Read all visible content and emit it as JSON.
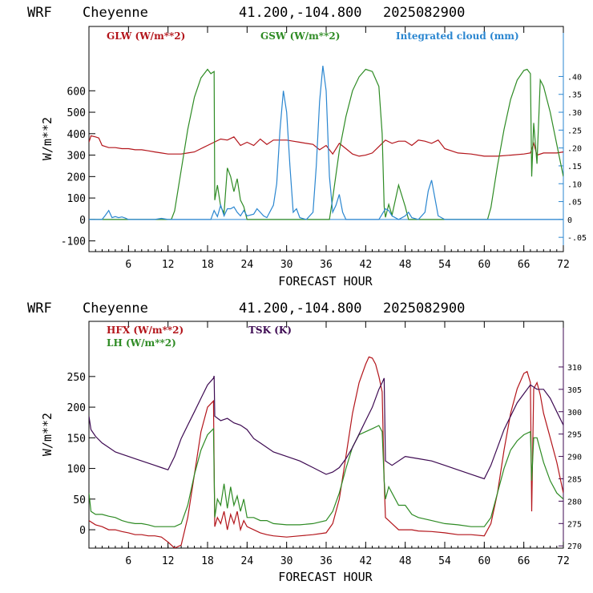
{
  "colors": {
    "glw": "#b3151b",
    "gsw": "#2e8b24",
    "cloud": "#2a86d0",
    "hfx": "#b3151b",
    "lh": "#2e8b24",
    "tsk": "#3d0a52"
  },
  "chart_data": [
    {
      "type": "line",
      "header": {
        "model": "WRF",
        "station": "Cheyenne",
        "coords": "41.200,-104.800",
        "date": "2025082900"
      },
      "xlabel": "FORECAST HOUR",
      "ylabel": "W/m**2",
      "xlim": [
        0,
        72
      ],
      "ylim": [
        -150,
        900
      ],
      "y2lim": [
        -0.09,
        0.54
      ],
      "xticks": [
        6,
        12,
        18,
        24,
        30,
        36,
        42,
        48,
        54,
        60,
        66,
        72
      ],
      "yticks": [
        -100,
        0,
        100,
        200,
        300,
        400,
        500,
        600
      ],
      "y2ticks": [
        -0.05,
        0,
        0.05,
        0.1,
        0.15,
        0.2,
        0.25,
        0.3,
        0.35,
        0.4
      ],
      "y2tick_labels": [
        "-.05",
        "0",
        ".05",
        ".10",
        ".15",
        ".20",
        ".25",
        ".30",
        ".35",
        ".40"
      ],
      "series": [
        {
          "name": "GLW (W/m**2)",
          "axis": "left",
          "x": [
            0,
            0.3,
            1,
            1.5,
            2,
            3,
            4,
            5,
            6,
            7,
            8,
            9,
            10,
            11,
            12,
            13,
            14,
            15,
            16,
            17,
            18,
            19,
            20,
            21,
            22,
            23,
            24,
            25,
            26,
            27,
            28,
            29,
            30,
            31,
            32,
            33,
            34,
            35,
            36,
            37,
            38,
            39,
            40,
            41,
            42,
            43,
            44,
            45,
            46,
            47,
            48,
            49,
            50,
            51,
            52,
            53,
            54,
            56,
            58,
            60,
            62,
            64,
            66,
            67,
            67.5,
            68,
            69,
            70,
            71,
            72
          ],
          "values": [
            360,
            390,
            385,
            380,
            345,
            335,
            335,
            330,
            330,
            325,
            325,
            320,
            315,
            310,
            305,
            305,
            305,
            310,
            315,
            330,
            345,
            360,
            375,
            370,
            385,
            345,
            360,
            345,
            375,
            350,
            370,
            370,
            370,
            365,
            360,
            355,
            350,
            325,
            345,
            305,
            355,
            330,
            305,
            295,
            300,
            310,
            340,
            370,
            355,
            365,
            365,
            345,
            370,
            365,
            355,
            370,
            330,
            310,
            305,
            295,
            295,
            300,
            305,
            310,
            355,
            300,
            310,
            310,
            310,
            315
          ]
        },
        {
          "name": "GSW (W/m**2)",
          "axis": "left",
          "x": [
            0,
            12.5,
            13,
            14,
            15,
            16,
            17,
            18,
            18.5,
            19,
            19.1,
            19.5,
            20,
            20.5,
            21,
            21.5,
            22,
            22.5,
            23,
            23.5,
            24,
            36.5,
            37,
            38,
            39,
            40,
            41,
            42,
            43,
            44,
            44.5,
            44.8,
            45,
            45.5,
            46,
            47,
            48,
            48.5,
            60.5,
            61,
            62,
            63,
            64,
            65,
            66,
            66.5,
            67,
            67.2,
            67.5,
            68,
            68.5,
            69,
            70,
            71,
            72
          ],
          "values": [
            0,
            0,
            40,
            230,
            420,
            570,
            660,
            700,
            680,
            690,
            90,
            160,
            60,
            30,
            240,
            200,
            130,
            190,
            90,
            60,
            0,
            0,
            100,
            320,
            480,
            600,
            665,
            700,
            690,
            620,
            400,
            60,
            10,
            70,
            20,
            160,
            60,
            0,
            0,
            55,
            250,
            420,
            560,
            650,
            695,
            700,
            680,
            200,
            450,
            260,
            650,
            620,
            500,
            350,
            200
          ]
        },
        {
          "name": "Integrated cloud (mm)",
          "axis": "right",
          "x": [
            0,
            1,
            2,
            2.5,
            3,
            3.5,
            4,
            4.5,
            5,
            5.5,
            6,
            10,
            11,
            12,
            18.5,
            19,
            19.5,
            20,
            20.5,
            21,
            21.5,
            22,
            22.5,
            23,
            23.5,
            24,
            25,
            25.5,
            26,
            26.5,
            27,
            28,
            28.5,
            29,
            29.5,
            30,
            30.5,
            31,
            31.5,
            32,
            33,
            34,
            34.5,
            35,
            35.5,
            36,
            36.5,
            37,
            37.5,
            38,
            38.5,
            39,
            44,
            44.5,
            45,
            45.5,
            46,
            47,
            48,
            48.5,
            49,
            50,
            51,
            51.5,
            52,
            52.5,
            53,
            54,
            72
          ],
          "values": [
            0,
            0,
            0,
            0.012,
            0.025,
            0.005,
            0.008,
            0.005,
            0.007,
            0.004,
            0,
            0,
            0.003,
            0,
            0,
            0.025,
            0.008,
            0.04,
            0.01,
            0.03,
            0.03,
            0.035,
            0.02,
            0.01,
            0.025,
            0.01,
            0.015,
            0.03,
            0.02,
            0.01,
            0.005,
            0.04,
            0.1,
            0.25,
            0.36,
            0.3,
            0.15,
            0.02,
            0.03,
            0.005,
            0,
            0.02,
            0.15,
            0.33,
            0.43,
            0.36,
            0.12,
            0.02,
            0.04,
            0.07,
            0.02,
            0,
            0,
            0.015,
            0.03,
            0.025,
            0.01,
            0,
            0.01,
            0.02,
            0.005,
            0,
            0.02,
            0.08,
            0.11,
            0.06,
            0.01,
            0,
            0
          ]
        }
      ]
    },
    {
      "type": "line",
      "header": {
        "model": "WRF",
        "station": "Cheyenne",
        "coords": "41.200,-104.800",
        "date": "2025082900"
      },
      "xlabel": "FORECAST HOUR",
      "ylabel": "W/m**2",
      "xlim": [
        0,
        72
      ],
      "ylim": [
        -30,
        340
      ],
      "y2lim": [
        269.5,
        320.2
      ],
      "xticks": [
        6,
        12,
        18,
        24,
        30,
        36,
        42,
        48,
        54,
        60,
        66,
        72
      ],
      "yticks": [
        0,
        50,
        100,
        150,
        200,
        250
      ],
      "y2ticks": [
        270,
        275,
        280,
        285,
        290,
        295,
        300,
        305,
        310
      ],
      "series": [
        {
          "name": "HFX (W/m**2)",
          "axis": "left",
          "x": [
            0,
            1,
            2,
            3,
            4,
            5,
            6,
            7,
            8,
            9,
            10,
            11,
            12,
            13,
            14,
            15,
            16,
            17,
            18,
            18.9,
            19.1,
            19.5,
            20,
            20.5,
            21,
            21.5,
            22,
            22.5,
            23,
            23.5,
            24,
            25,
            26,
            27,
            28,
            30,
            32,
            34,
            36,
            37,
            38,
            39,
            40,
            41,
            42,
            42.5,
            43,
            43.5,
            44,
            44.5,
            44.8,
            45,
            45.5,
            46,
            47,
            48,
            49,
            50,
            52,
            54,
            56,
            58,
            60,
            61,
            62,
            63,
            64,
            65,
            66,
            66.5,
            67,
            67.2,
            67.5,
            68,
            68.5,
            69,
            70,
            71,
            72
          ],
          "values": [
            15,
            8,
            5,
            0,
            0,
            -3,
            -5,
            -8,
            -8,
            -10,
            -10,
            -12,
            -20,
            -30,
            -25,
            20,
            90,
            160,
            200,
            210,
            5,
            20,
            10,
            30,
            0,
            25,
            10,
            30,
            0,
            15,
            5,
            0,
            -5,
            -8,
            -10,
            -12,
            -10,
            -8,
            -5,
            10,
            50,
            120,
            190,
            240,
            270,
            282,
            280,
            270,
            250,
            225,
            80,
            20,
            15,
            10,
            0,
            0,
            0,
            -2,
            -3,
            -5,
            -8,
            -8,
            -10,
            10,
            60,
            130,
            190,
            230,
            255,
            258,
            240,
            30,
            230,
            240,
            220,
            190,
            150,
            110,
            60
          ]
        },
        {
          "name": "LH (W/m**2)",
          "axis": "left",
          "x": [
            0,
            0.3,
            1,
            2,
            3,
            4,
            5,
            6,
            7,
            8,
            9,
            10,
            11,
            12,
            13,
            14,
            15,
            16,
            17,
            18,
            18.9,
            19.1,
            19.5,
            20,
            20.5,
            21,
            21.5,
            22,
            22.5,
            23,
            23.5,
            24,
            25,
            26,
            27,
            28,
            30,
            32,
            34,
            36,
            37,
            38,
            39,
            40,
            41,
            42,
            43,
            44,
            44.5,
            44.8,
            45,
            45.5,
            46,
            47,
            48,
            49,
            50,
            52,
            54,
            56,
            58,
            60,
            61,
            62,
            63,
            64,
            65,
            66,
            67,
            67.2,
            67.5,
            68,
            69,
            70,
            71,
            72
          ],
          "values": [
            60,
            30,
            25,
            25,
            22,
            20,
            15,
            12,
            10,
            10,
            8,
            5,
            5,
            5,
            5,
            10,
            40,
            90,
            130,
            155,
            165,
            20,
            50,
            40,
            75,
            35,
            70,
            40,
            55,
            30,
            50,
            20,
            20,
            15,
            15,
            10,
            8,
            8,
            10,
            15,
            30,
            60,
            100,
            135,
            155,
            160,
            165,
            170,
            160,
            80,
            50,
            70,
            60,
            40,
            40,
            25,
            20,
            15,
            10,
            8,
            5,
            5,
            20,
            60,
            100,
            130,
            145,
            155,
            160,
            80,
            150,
            150,
            110,
            80,
            60,
            50
          ]
        },
        {
          "name": "TSK (K)",
          "axis": "right",
          "x": [
            0,
            0.3,
            1,
            2,
            3,
            4,
            5,
            6,
            7,
            8,
            9,
            10,
            11,
            12,
            13,
            14,
            15,
            16,
            17,
            18,
            18.9,
            19,
            19.1,
            20,
            21,
            22,
            23,
            24,
            25,
            26,
            28,
            30,
            32,
            34,
            36,
            37,
            38,
            39,
            40,
            41,
            42,
            43,
            44,
            44.5,
            44.8,
            45,
            46,
            48,
            50,
            52,
            54,
            56,
            58,
            60,
            61,
            62,
            63,
            64,
            65,
            66,
            67,
            68,
            69,
            70,
            71,
            72
          ],
          "values": [
            299,
            296,
            294.5,
            293,
            292,
            291,
            290.5,
            290,
            289.5,
            289,
            288.5,
            288,
            287.5,
            287,
            290,
            294,
            297,
            300,
            303,
            306,
            307.5,
            308,
            299,
            298,
            298.5,
            297.5,
            297,
            296,
            294,
            293,
            291,
            290,
            289,
            287.5,
            286,
            286.5,
            287.5,
            289.5,
            292,
            295,
            298,
            301,
            305,
            306.5,
            307.5,
            289,
            288,
            290,
            289.5,
            289,
            288,
            287,
            286,
            285,
            288,
            292,
            296,
            299,
            302,
            304,
            306,
            305,
            305,
            303,
            300,
            297
          ]
        }
      ]
    }
  ]
}
